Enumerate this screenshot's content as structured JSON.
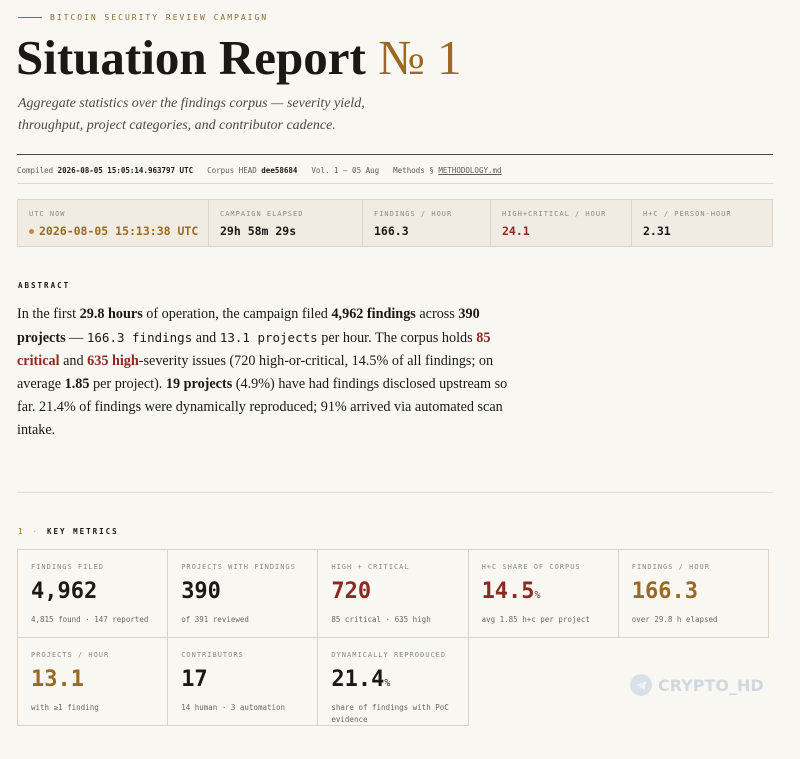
{
  "header": {
    "eyebrow": "BITCOIN SECURITY REVIEW CAMPAIGN",
    "title_main": "Situation Report",
    "title_accent": "№ 1",
    "subtitle": "Aggregate statistics over the findings corpus — severity yield, throughput, project categories, and contributor cadence."
  },
  "meta": {
    "compiled_label": "Compiled",
    "compiled_value": "2026-08-05 15:05:14.963797 UTC",
    "corpus_label": "Corpus HEAD",
    "corpus_value": "dee58684",
    "volume": "Vol. 1 — 05 Aug",
    "methods_label": "Methods §",
    "methods_link": "METHODOLOGY.md"
  },
  "live": [
    {
      "label": "UTC NOW",
      "value": "2026-08-05 15:13:38 UTC",
      "tone": "gold"
    },
    {
      "label": "CAMPAIGN ELAPSED",
      "value": "29h 58m 29s",
      "tone": "plain"
    },
    {
      "label": "FINDINGS / HOUR",
      "value": "166.3",
      "tone": "plain"
    },
    {
      "label": "HIGH+CRITICAL / HOUR",
      "value": "24.1",
      "tone": "red"
    },
    {
      "label": "H+C / PERSON-HOUR",
      "value": "2.31",
      "tone": "plain"
    }
  ],
  "abstract": {
    "label": "ABSTRACT",
    "t1": "In the first ",
    "hours": "29.8 hours",
    "t2": " of operation, the campaign filed ",
    "findings": "4,962 findings",
    "t3": " across ",
    "projects": "390 projects",
    "t4": " — ",
    "rate1": "166.3 findings",
    "t5": " and ",
    "rate2": "13.1 projects",
    "t6": " per hour. The corpus holds ",
    "critical": "85 critical",
    "t7": " and ",
    "high": "635 high",
    "t8": "-severity issues (720 high-or-critical, 14.5% of all findings; on average ",
    "avg": "1.85",
    "t9": " per project). ",
    "disclosed": "19 projects",
    "t10": " (4.9%) have had findings disclosed upstream so far. 21.4% of findings were dynamically reproduced; 91% arrived via automated scan intake."
  },
  "section": {
    "number": "1",
    "sep": "·",
    "title": "KEY METRICS"
  },
  "metrics": [
    {
      "label": "FINDINGS FILED",
      "value": "4,962",
      "unit": "",
      "sub": "4,815 found · 147 reported",
      "tone": "plain"
    },
    {
      "label": "PROJECTS WITH FINDINGS",
      "value": "390",
      "unit": "",
      "sub": "of 391 reviewed",
      "tone": "plain"
    },
    {
      "label": "HIGH + CRITICAL",
      "value": "720",
      "unit": "",
      "sub": "85 critical · 635 high",
      "tone": "red"
    },
    {
      "label": "H+C SHARE OF CORPUS",
      "value": "14.5",
      "unit": "%",
      "sub": "avg 1.85 h+c per project",
      "tone": "red"
    },
    {
      "label": "FINDINGS / HOUR",
      "value": "166.3",
      "unit": "",
      "sub": "over 29.8 h elapsed",
      "tone": "gold"
    },
    {
      "label": "PROJECTS / HOUR",
      "value": "13.1",
      "unit": "",
      "sub": "with ≥1 finding",
      "tone": "gold"
    },
    {
      "label": "CONTRIBUTORS",
      "value": "17",
      "unit": "",
      "sub": "14 human · 3 automation",
      "tone": "plain"
    },
    {
      "label": "DYNAMICALLY REPRODUCED",
      "value": "21.4",
      "unit": "%",
      "sub": "share of findings with PoC evidence",
      "tone": "plain"
    }
  ],
  "watermark": {
    "text": "CRYPTO_HD",
    "icon": "telegram-icon"
  }
}
